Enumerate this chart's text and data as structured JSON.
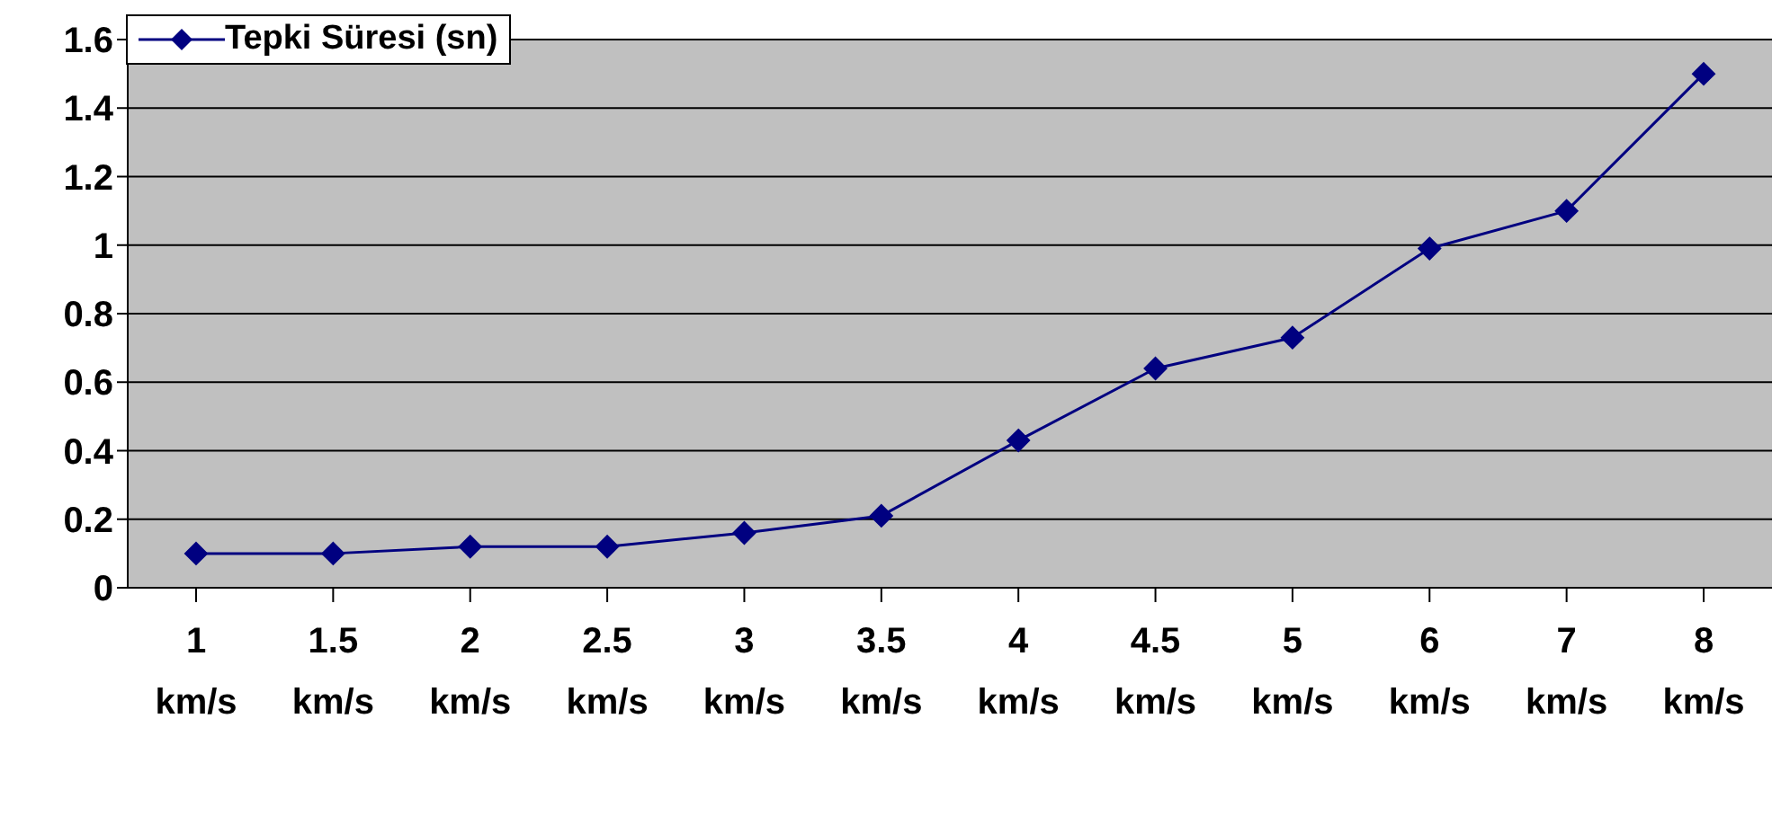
{
  "chart_data": {
    "type": "line",
    "categories": [
      "1 km/s",
      "1.5 km/s",
      "2 km/s",
      "2.5 km/s",
      "3 km/s",
      "3.5 km/s",
      "4 km/s",
      "4.5 km/s",
      "5 km/s",
      "6 km/s",
      "7 km/s",
      "8 km/s"
    ],
    "series": [
      {
        "name": "Tepki Süresi (sn)",
        "color": "#000080",
        "values": [
          0.1,
          0.1,
          0.12,
          0.12,
          0.16,
          0.21,
          0.43,
          0.64,
          0.73,
          0.99,
          1.1,
          1.5
        ]
      }
    ],
    "ylim": [
      0,
      1.6
    ],
    "yticks": [
      0,
      0.2,
      0.4,
      0.6,
      0.8,
      1,
      1.2,
      1.4,
      1.6
    ],
    "grid": "y",
    "legend": "top left",
    "marker": "diamond",
    "line_style": "solid"
  }
}
